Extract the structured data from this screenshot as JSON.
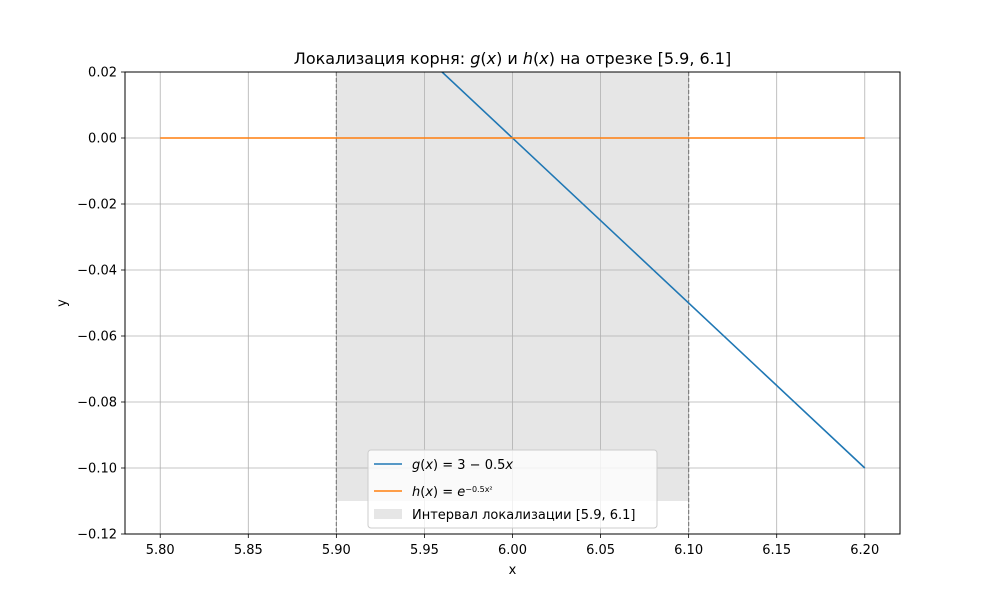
{
  "chart_data": {
    "type": "line",
    "title_parts": [
      {
        "text": "Локализация корня: ",
        "italic": false
      },
      {
        "text": "g",
        "italic": true
      },
      {
        "text": "(",
        "italic": false
      },
      {
        "text": "x",
        "italic": true
      },
      {
        "text": ") и ",
        "italic": false
      },
      {
        "text": "h",
        "italic": true
      },
      {
        "text": "(",
        "italic": false
      },
      {
        "text": "x",
        "italic": true
      },
      {
        "text": ") на отрезке [5.9, 6.1]",
        "italic": false
      }
    ],
    "xlabel": "x",
    "ylabel": "y",
    "xlim": [
      5.78,
      6.22
    ],
    "ylim": [
      -0.12,
      0.02
    ],
    "x_ticks": [
      5.8,
      5.85,
      5.9,
      5.95,
      6.0,
      6.05,
      6.1,
      6.15,
      6.2
    ],
    "x_tick_labels": [
      "5.80",
      "5.85",
      "5.90",
      "5.95",
      "6.00",
      "6.05",
      "6.10",
      "6.15",
      "6.20"
    ],
    "y_ticks": [
      0.02,
      0.0,
      -0.02,
      -0.04,
      -0.06,
      -0.08,
      -0.1,
      -0.12
    ],
    "y_tick_labels": [
      "0.02",
      "0.00",
      "−0.02",
      "−0.04",
      "−0.06",
      "−0.08",
      "−0.10",
      "−0.12"
    ],
    "grid": true,
    "legend_position": "lower center",
    "series": [
      {
        "name": "g(x) = 3 − 0.5x",
        "legend_parts": [
          {
            "text": "g",
            "italic": true
          },
          {
            "text": "(",
            "italic": false
          },
          {
            "text": "x",
            "italic": true
          },
          {
            "text": ") = 3 − 0.5",
            "italic": false
          },
          {
            "text": "x",
            "italic": true
          }
        ],
        "color": "#1f77b4",
        "x": [
          5.8,
          6.2
        ],
        "y": [
          0.1,
          -0.1
        ]
      },
      {
        "name": "h(x) = e^(−0.5x²)",
        "legend_parts": [
          {
            "text": "h",
            "italic": true
          },
          {
            "text": "(",
            "italic": false
          },
          {
            "text": "x",
            "italic": true
          },
          {
            "text": ") = ",
            "italic": false
          },
          {
            "text": "e",
            "italic": true
          },
          {
            "text": "−0.5x²",
            "italic": false,
            "sup": true
          }
        ],
        "color": "#ff7f0e",
        "x": [
          5.8,
          6.2
        ],
        "y": [
          0.0,
          0.0
        ]
      }
    ],
    "interval": {
      "label": "Интервал локализации [5.9, 6.1]",
      "x": [
        5.9,
        6.1
      ],
      "y": [
        -0.11,
        0.02
      ],
      "color": "#e6e6e6",
      "boundary_color": "#808080"
    }
  }
}
